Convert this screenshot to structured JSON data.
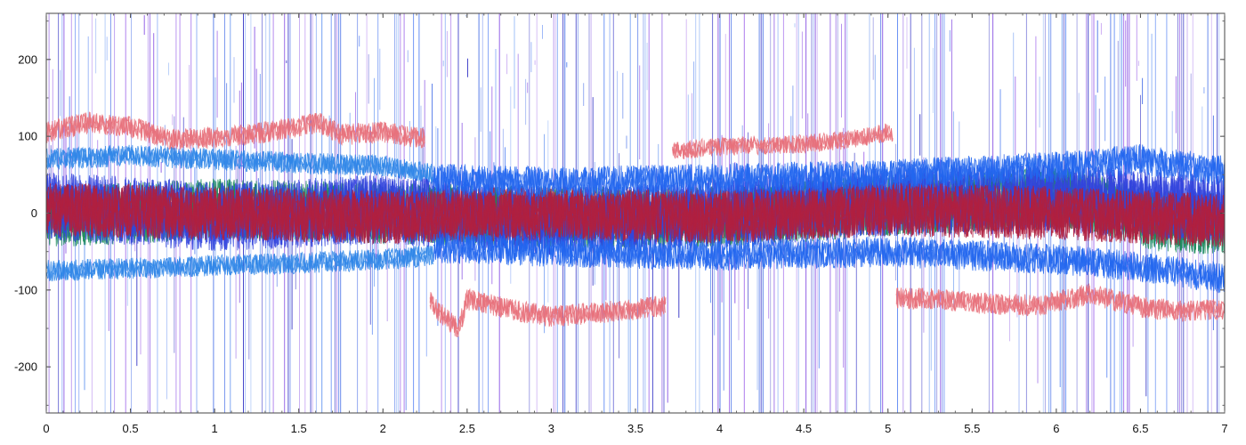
{
  "chart_data": {
    "type": "line",
    "title": "",
    "xlabel": "",
    "ylabel": "",
    "xlim": [
      0,
      7
    ],
    "ylim": [
      -260,
      260
    ],
    "x_ticks": [
      0,
      0.5,
      1,
      1.5,
      2,
      2.5,
      3,
      3.5,
      4,
      4.5,
      5,
      5.5,
      6,
      6.5,
      7
    ],
    "x_tick_labels": [
      "0",
      "0.5",
      "1",
      "1.5",
      "2",
      "2.5",
      "3",
      "3.5",
      "4",
      "4.5",
      "5",
      "5.5",
      "6",
      "6.5",
      "7"
    ],
    "y_ticks": [
      -200,
      -100,
      0,
      100,
      200
    ],
    "y_tick_labels": [
      "-200",
      "-100",
      "0",
      "100",
      "200"
    ],
    "grid": false,
    "legend": "none",
    "series": [
      {
        "color": "#e8707a",
        "x": [
          0,
          0.25,
          0.5,
          0.75,
          1,
          1.25,
          1.5,
          1.62,
          1.75,
          2,
          2.25
        ],
        "values": [
          105,
          118,
          112,
          96,
          98,
          104,
          112,
          118,
          102,
          106,
          96
        ],
        "band": 14
      },
      {
        "color": "#e8707a",
        "x": [
          2.28,
          2.35,
          2.45,
          2.5,
          2.75,
          3,
          3.25,
          3.5,
          3.68
        ],
        "values": [
          -115,
          -132,
          -152,
          -112,
          -125,
          -135,
          -130,
          -125,
          -120
        ],
        "band": 14
      },
      {
        "color": "#e8707a",
        "x": [
          3.72,
          3.9,
          4.2,
          4.5,
          4.75,
          5,
          5.03
        ],
        "values": [
          80,
          85,
          88,
          90,
          95,
          105,
          100
        ],
        "band": 12
      },
      {
        "color": "#e8707a",
        "x": [
          5.05,
          5.3,
          5.6,
          5.9,
          6.2,
          6.5,
          6.75,
          7
        ],
        "values": [
          -110,
          -112,
          -118,
          -120,
          -105,
          -122,
          -128,
          -125
        ],
        "band": 14
      },
      {
        "color": "#2f86e8",
        "x": [
          0,
          0.5,
          1,
          1.5,
          2,
          2.3
        ],
        "values": [
          70,
          75,
          70,
          65,
          62,
          50
        ],
        "band": 14
      },
      {
        "color": "#2f86e8",
        "x": [
          0,
          0.5,
          1,
          1.5,
          2,
          2.3
        ],
        "values": [
          -75,
          -72,
          -68,
          -65,
          -60,
          -55
        ],
        "band": 14
      },
      {
        "color": "#1a8a5a",
        "x": [
          0,
          1,
          2,
          3,
          4,
          5,
          6,
          6.2,
          6.6,
          7
        ],
        "values": [
          -5,
          5,
          0,
          -5,
          -5,
          10,
          20,
          15,
          -10,
          -15
        ],
        "band": 40
      },
      {
        "color": "#3344dd",
        "x": [
          0,
          1,
          2,
          3,
          4,
          5,
          6,
          7
        ],
        "values": [
          10,
          -5,
          5,
          -10,
          0,
          15,
          20,
          5
        ],
        "band": 45
      },
      {
        "color": "#b02040",
        "x": [
          0,
          1,
          2,
          3,
          4,
          5,
          6,
          7
        ],
        "values": [
          5,
          0,
          -5,
          0,
          -5,
          5,
          0,
          -10
        ],
        "band": 35
      },
      {
        "color": "#2266ee",
        "x": [
          2.3,
          3,
          4,
          5,
          6,
          6.5,
          7
        ],
        "values": [
          45,
          40,
          45,
          50,
          60,
          70,
          55
        ],
        "band": 20
      },
      {
        "color": "#2266ee",
        "x": [
          2.3,
          3,
          4,
          5,
          6,
          6.5,
          7
        ],
        "values": [
          -45,
          -50,
          -55,
          -50,
          -60,
          -70,
          -85
        ],
        "band": 20
      }
    ]
  }
}
